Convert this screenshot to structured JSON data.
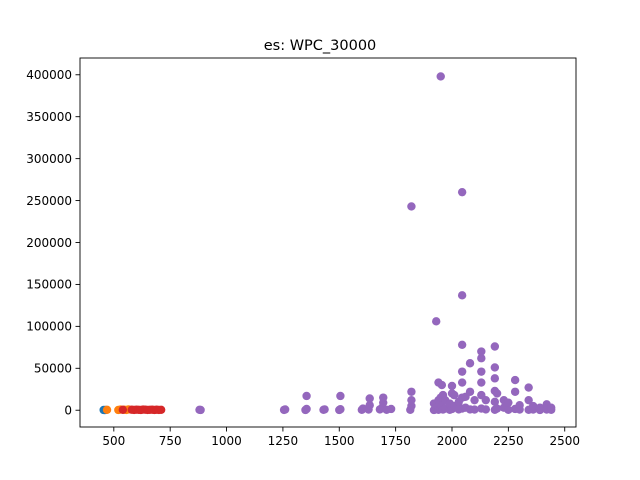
{
  "chart_data": {
    "type": "scatter",
    "title": "es: WPC_30000",
    "xlabel": "",
    "ylabel": "",
    "xlim": [
      350,
      2550
    ],
    "ylim": [
      -20000,
      420000
    ],
    "xticks": [
      500,
      750,
      1000,
      1250,
      1500,
      1750,
      2000,
      2250,
      2500
    ],
    "yticks": [
      0,
      50000,
      100000,
      150000,
      200000,
      250000,
      300000,
      350000,
      400000
    ],
    "grid": false,
    "legend": "none",
    "series": [
      {
        "color": "#1f77b4",
        "points": [
          [
            455,
            300
          ],
          [
            460,
            200
          ],
          [
            465,
            400
          ]
        ]
      },
      {
        "color": "#ff7f0e",
        "points": [
          [
            470,
            500
          ],
          [
            520,
            300
          ],
          [
            530,
            800
          ],
          [
            545,
            600
          ],
          [
            555,
            400
          ],
          [
            565,
            900
          ]
        ]
      },
      {
        "color": "#d62728",
        "points": [
          [
            540,
            500
          ],
          [
            580,
            600
          ],
          [
            590,
            400
          ],
          [
            600,
            700
          ],
          [
            610,
            500
          ],
          [
            620,
            300
          ],
          [
            630,
            800
          ],
          [
            640,
            600
          ],
          [
            650,
            400
          ],
          [
            660,
            500
          ],
          [
            670,
            700
          ],
          [
            680,
            300
          ],
          [
            690,
            600
          ],
          [
            700,
            400
          ],
          [
            710,
            500
          ]
        ]
      },
      {
        "color": "#9467bd",
        "points": [
          [
            880,
            500
          ],
          [
            885,
            300
          ],
          [
            1255,
            400
          ],
          [
            1260,
            900
          ],
          [
            1350,
            300
          ],
          [
            1355,
            1500
          ],
          [
            1355,
            17000
          ],
          [
            1430,
            500
          ],
          [
            1435,
            1000
          ],
          [
            1500,
            300
          ],
          [
            1505,
            1200
          ],
          [
            1505,
            17000
          ],
          [
            1600,
            500
          ],
          [
            1605,
            2000
          ],
          [
            1630,
            800
          ],
          [
            1635,
            6000
          ],
          [
            1635,
            14000
          ],
          [
            1680,
            1000
          ],
          [
            1690,
            3000
          ],
          [
            1695,
            9000
          ],
          [
            1695,
            15000
          ],
          [
            1710,
            500
          ],
          [
            1730,
            1500
          ],
          [
            1815,
            500
          ],
          [
            1820,
            5000
          ],
          [
            1820,
            12000
          ],
          [
            1820,
            22000
          ],
          [
            1820,
            243000
          ],
          [
            1920,
            300
          ],
          [
            1920,
            8000
          ],
          [
            1930,
            3000
          ],
          [
            1930,
            106000
          ],
          [
            1940,
            500
          ],
          [
            1940,
            12000
          ],
          [
            1940,
            33000
          ],
          [
            1950,
            2000
          ],
          [
            1950,
            15000
          ],
          [
            1950,
            398000
          ],
          [
            1955,
            5000
          ],
          [
            1955,
            30000
          ],
          [
            1960,
            800
          ],
          [
            1960,
            18000
          ],
          [
            1970,
            2000
          ],
          [
            1970,
            12000
          ],
          [
            1990,
            500
          ],
          [
            1990,
            8000
          ],
          [
            2000,
            1500
          ],
          [
            2000,
            20000
          ],
          [
            2000,
            29000
          ],
          [
            2010,
            5000
          ],
          [
            2010,
            18000
          ],
          [
            2030,
            1000
          ],
          [
            2030,
            10000
          ],
          [
            2045,
            2000
          ],
          [
            2045,
            15000
          ],
          [
            2045,
            33000
          ],
          [
            2045,
            46000
          ],
          [
            2045,
            78000
          ],
          [
            2045,
            137000
          ],
          [
            2045,
            260000
          ],
          [
            2060,
            3000
          ],
          [
            2060,
            16000
          ],
          [
            2080,
            1000
          ],
          [
            2080,
            22000
          ],
          [
            2080,
            56000
          ],
          [
            2100,
            800
          ],
          [
            2100,
            12000
          ],
          [
            2130,
            2000
          ],
          [
            2130,
            18000
          ],
          [
            2130,
            33000
          ],
          [
            2130,
            46000
          ],
          [
            2130,
            62000
          ],
          [
            2130,
            70000
          ],
          [
            2150,
            1000
          ],
          [
            2150,
            12000
          ],
          [
            2190,
            500
          ],
          [
            2190,
            10000
          ],
          [
            2190,
            23000
          ],
          [
            2190,
            38000
          ],
          [
            2190,
            51000
          ],
          [
            2190,
            76000
          ],
          [
            2200,
            2000
          ],
          [
            2200,
            20000
          ],
          [
            2230,
            3000
          ],
          [
            2230,
            12000
          ],
          [
            2250,
            500
          ],
          [
            2250,
            9000
          ],
          [
            2280,
            1500
          ],
          [
            2280,
            22000
          ],
          [
            2280,
            36000
          ],
          [
            2300,
            800
          ],
          [
            2300,
            6000
          ],
          [
            2340,
            500
          ],
          [
            2340,
            12000
          ],
          [
            2340,
            27000
          ],
          [
            2360,
            800
          ],
          [
            2360,
            5000
          ],
          [
            2390,
            300
          ],
          [
            2390,
            3000
          ],
          [
            2420,
            800
          ],
          [
            2420,
            7000
          ],
          [
            2440,
            500
          ],
          [
            2440,
            3000
          ]
        ]
      }
    ]
  }
}
